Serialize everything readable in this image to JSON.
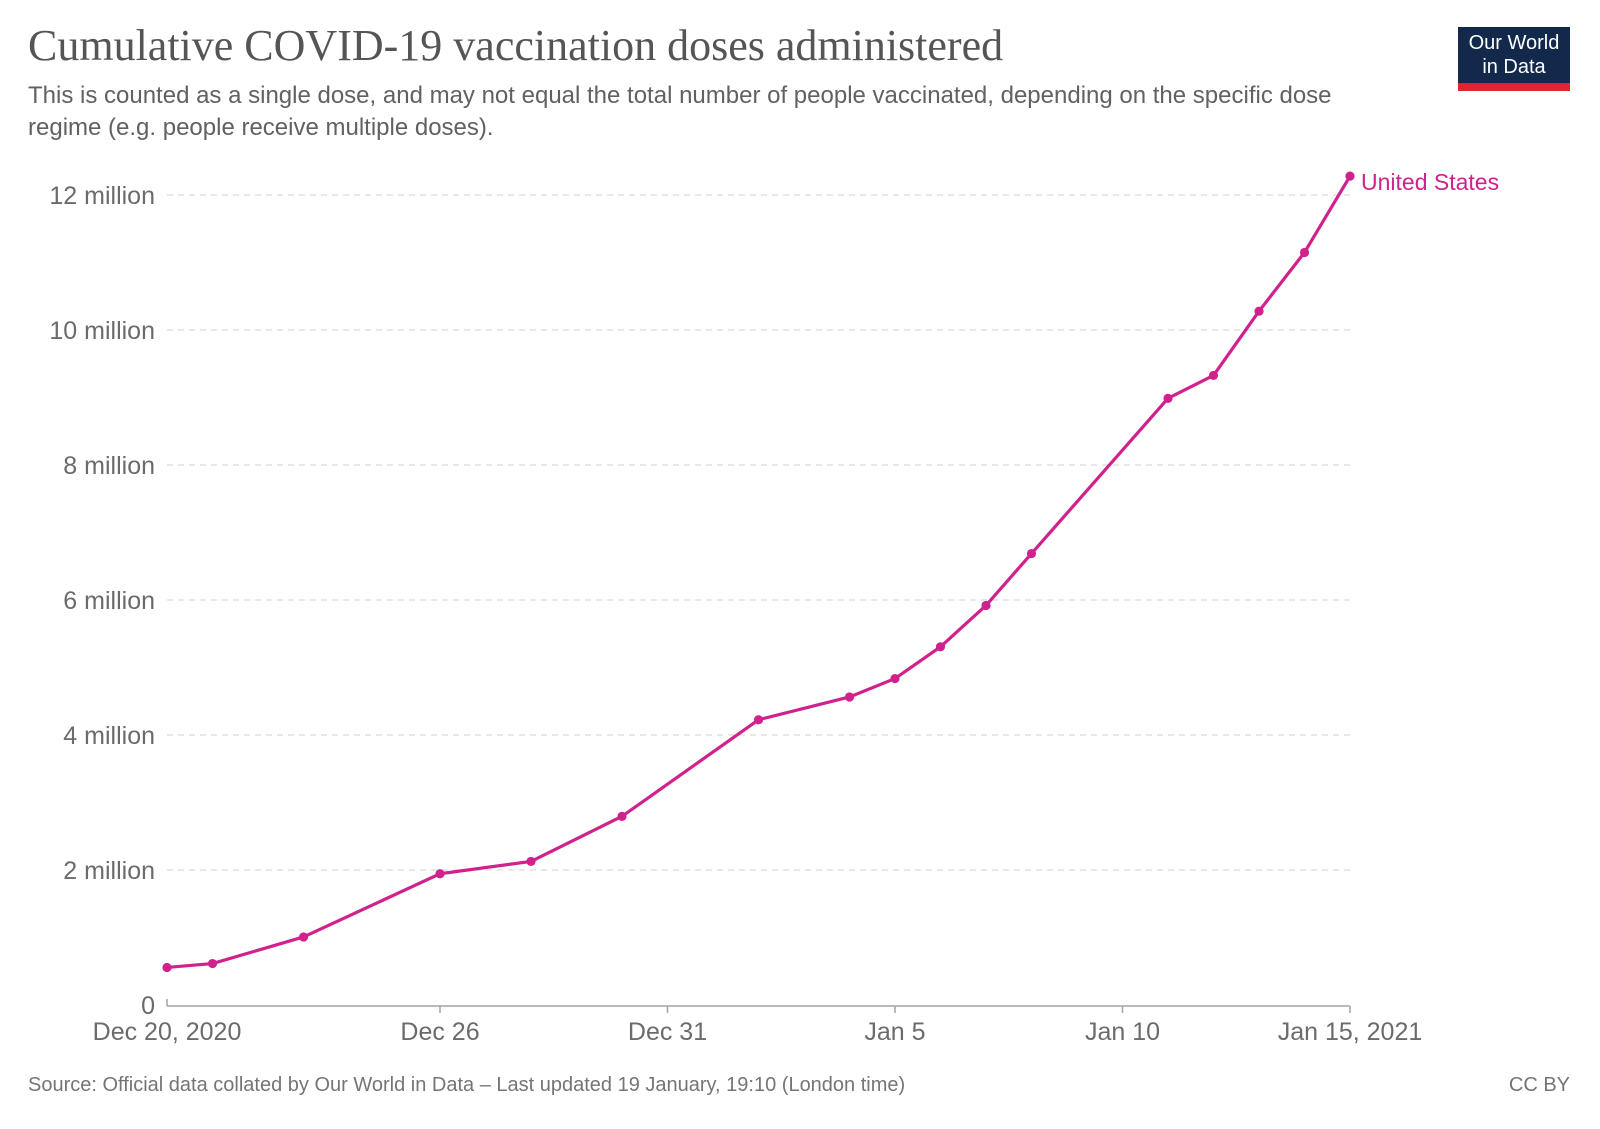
{
  "header": {
    "title": "Cumulative COVID-19 vaccination doses administered",
    "subtitle": "This is counted as a single dose, and may not equal the total number of people vaccinated, depending on the specific dose regime (e.g. people receive multiple doses)."
  },
  "logo": {
    "line1": "Our World",
    "line2": "in Data",
    "bg_color": "#12294C",
    "stripe_color": "#E0262C"
  },
  "footer": {
    "source": "Source: Official data collated by Our World in Data – Last updated 19 January, 19:10 (London time)",
    "license": "CC BY"
  },
  "chart_data": {
    "type": "line",
    "title": "Cumulative COVID-19 vaccination doses administered",
    "xlabel": "",
    "ylabel": "",
    "grid": true,
    "legend": "inline-end-label",
    "x_range": [
      "Dec 20, 2020",
      "Jan 15, 2021"
    ],
    "ylim": [
      0,
      12600000
    ],
    "y_ticks": [
      {
        "label": "0",
        "value": 0
      },
      {
        "label": "2 million",
        "value": 2000000
      },
      {
        "label": "4 million",
        "value": 4000000
      },
      {
        "label": "6 million",
        "value": 6000000
      },
      {
        "label": "8 million",
        "value": 8000000
      },
      {
        "label": "10 million",
        "value": 10000000
      },
      {
        "label": "12 million",
        "value": 12000000
      }
    ],
    "x_ticks": [
      {
        "label": "Dec 20, 2020",
        "day": 0
      },
      {
        "label": "Dec 26",
        "day": 6
      },
      {
        "label": "Dec 31",
        "day": 11
      },
      {
        "label": "Jan 5",
        "day": 16
      },
      {
        "label": "Jan 10",
        "day": 21
      },
      {
        "label": "Jan 15, 2021",
        "day": 26
      }
    ],
    "series": [
      {
        "name": "United States",
        "color": "#D0218D",
        "points": [
          {
            "date": "Dec 20, 2020",
            "day": 0,
            "value": 556208
          },
          {
            "date": "Dec 21, 2020",
            "day": 1,
            "value": 614117
          },
          {
            "date": "Dec 23, 2020",
            "day": 3,
            "value": 1008025
          },
          {
            "date": "Dec 26, 2020",
            "day": 6,
            "value": 1944585
          },
          {
            "date": "Dec 28, 2020",
            "day": 8,
            "value": 2127143
          },
          {
            "date": "Dec 30, 2020",
            "day": 10,
            "value": 2794588
          },
          {
            "date": "Jan 2, 2021",
            "day": 13,
            "value": 4225756
          },
          {
            "date": "Jan 4, 2021",
            "day": 15,
            "value": 4563260
          },
          {
            "date": "Jan 5, 2021",
            "day": 16,
            "value": 4836469
          },
          {
            "date": "Jan 6, 2021",
            "day": 17,
            "value": 5306797
          },
          {
            "date": "Jan 7, 2021",
            "day": 18,
            "value": 5919418
          },
          {
            "date": "Jan 8, 2021",
            "day": 19,
            "value": 6688231
          },
          {
            "date": "Jan 11, 2021",
            "day": 22,
            "value": 8987322
          },
          {
            "date": "Jan 12, 2021",
            "day": 23,
            "value": 9327138
          },
          {
            "date": "Jan 13, 2021",
            "day": 24,
            "value": 10278462
          },
          {
            "date": "Jan 14, 2021",
            "day": 25,
            "value": 11148991
          },
          {
            "date": "Jan 15, 2021",
            "day": 26,
            "value": 12279180
          }
        ]
      }
    ]
  }
}
